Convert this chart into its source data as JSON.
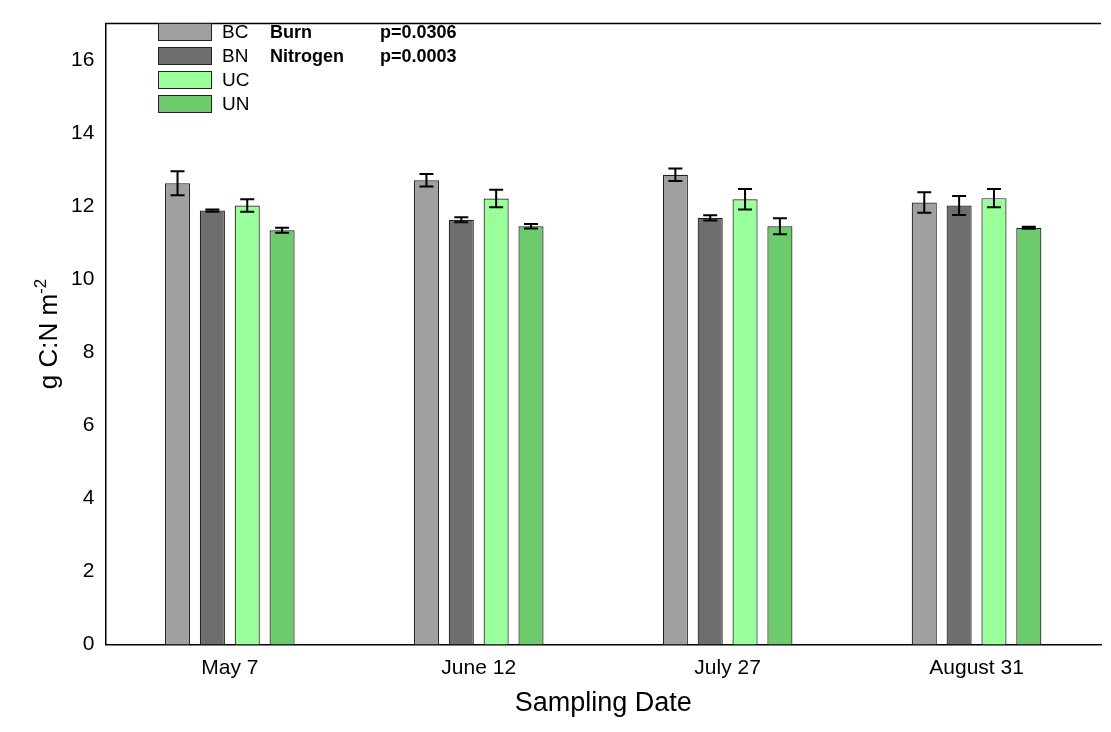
{
  "chart_data": {
    "type": "bar",
    "xlabel": "Sampling Date",
    "ylabel": "g C:N m$^{-2}$",
    "categories": [
      "May 7",
      "June 12",
      "July 27",
      "August 31"
    ],
    "series": [
      {
        "name": "BC",
        "color": "#a0a0a0",
        "values": [
          12.63,
          12.71,
          12.86,
          12.1
        ],
        "errors": [
          0.33,
          0.17,
          0.17,
          0.28
        ]
      },
      {
        "name": "BN",
        "color": "#6e6e6e",
        "values": [
          11.88,
          11.63,
          11.68,
          12.02
        ],
        "errors": [
          0.03,
          0.07,
          0.07,
          0.26
        ]
      },
      {
        "name": "UC",
        "color": "#99ff99",
        "values": [
          12.02,
          12.21,
          12.19,
          12.22
        ],
        "errors": [
          0.17,
          0.24,
          0.28,
          0.25
        ]
      },
      {
        "name": "UN",
        "color": "#6ccc6c",
        "values": [
          11.34,
          11.45,
          11.45,
          11.41
        ],
        "errors": [
          0.07,
          0.06,
          0.22,
          0.03
        ]
      }
    ],
    "ylim": [
      0,
      17
    ],
    "yticks": [
      0,
      2,
      4,
      6,
      8,
      10,
      12,
      14,
      16
    ],
    "grid": false,
    "legend": "top left",
    "annotations": [
      "Burn",
      "p=0.0306",
      "Nitrogen",
      "p=0.0003"
    ]
  }
}
